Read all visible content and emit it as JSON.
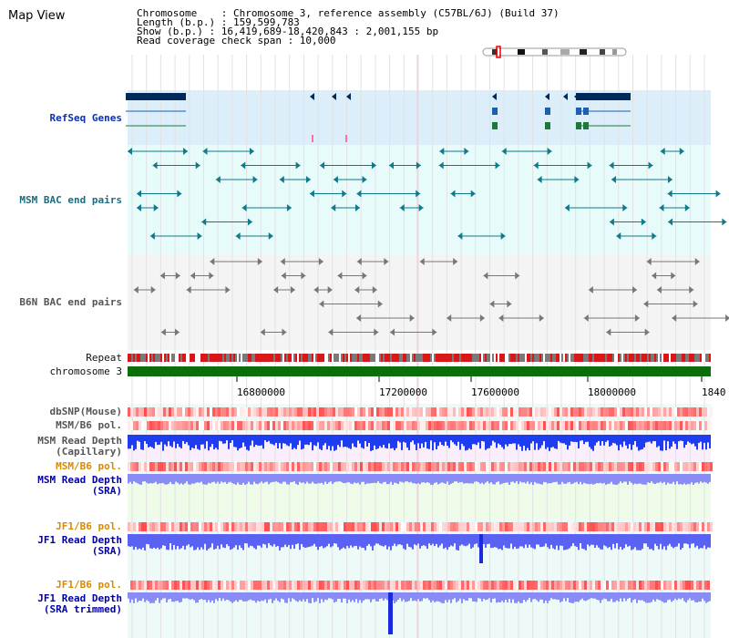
{
  "window": {
    "title": "Map View"
  },
  "info": {
    "chromosome": "Chromosome    : Chromosome 3, reference assembly (C57BL/6J) (Build 37)",
    "length": "Length (b.p.) : 159,599,783",
    "show": "Show (b.p.) : 16,419,689-18,420,843 : 2,001,155 bp",
    "coverage": "Read coverage check span : 10,000"
  },
  "tracks": {
    "refseq": "RefSeq Genes",
    "msm_bac": "MSM BAC end pairs",
    "b6n_bac": "B6N BAC end pairs",
    "repeat": "Repeat",
    "chromosome": "chromosome 3",
    "dbsnp": "dbSNP(Mouse)",
    "msm_b6_pol": "MSM/B6 pol.",
    "msm_depth_cap_1": "MSM Read Depth",
    "msm_depth_cap_2": "(Capillary)",
    "msm_b6_pol2": "MSM/B6 pol.",
    "msm_depth_sra_1": "MSM Read Depth",
    "msm_depth_sra_2": "(SRA)",
    "jf1_b6_pol": "JF1/B6 pol.",
    "jf1_depth_sra_1": "JF1 Read Depth",
    "jf1_depth_sra_2": "(SRA)",
    "jf1_b6_pol2": "JF1/B6 pol.",
    "jf1_depth_trim_1": "JF1 Read Depth",
    "jf1_depth_trim_2": "(SRA trimmed)"
  },
  "axis": {
    "ticks": [
      "16800000",
      "17200000",
      "17600000",
      "18000000",
      "1840"
    ]
  },
  "colors": {
    "refseq_bg": "#dceefa",
    "bac_bg": "#e8fbfb",
    "b6n_bg": "#f4f4f4",
    "chromosome_bar": "#0a6e0a",
    "gene_dark": "#002a5c",
    "msm_depth": "#1e3cf0",
    "sra_depth": "#8a8cf6"
  }
}
